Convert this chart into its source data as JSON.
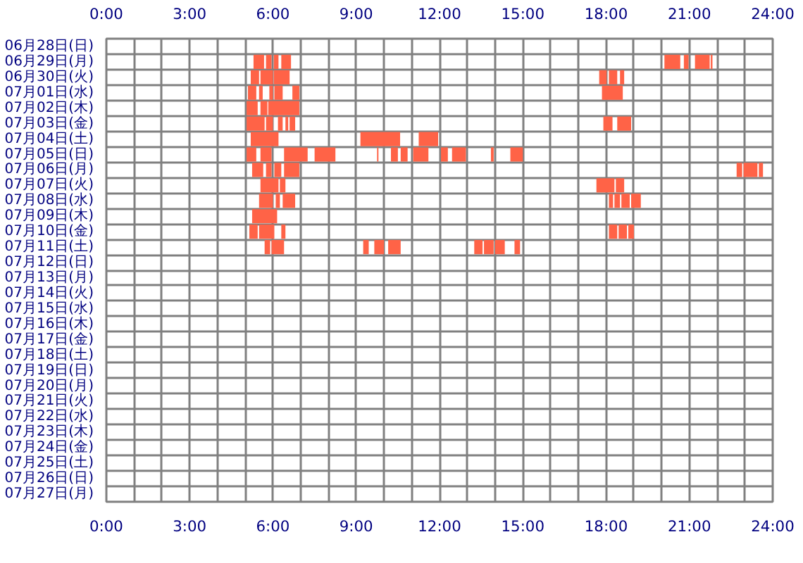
{
  "chart_data": {
    "type": "bar",
    "orientation": "horizontal",
    "grid": true,
    "categories": [
      "06月28日(日)",
      "06月29日(月)",
      "06月30日(火)",
      "07月01日(水)",
      "07月02日(木)",
      "07月03日(金)",
      "07月04日(土)",
      "07月05日(日)",
      "07月06日(月)",
      "07月07日(火)",
      "07月08日(水)",
      "07月09日(木)",
      "07月10日(金)",
      "07月11日(土)",
      "07月12日(日)",
      "07月13日(月)",
      "07月14日(火)",
      "07月15日(水)",
      "07月16日(木)",
      "07月17日(金)",
      "07月18日(土)",
      "07月19日(日)",
      "07月20日(月)",
      "07月21日(火)",
      "07月22日(水)",
      "07月23日(木)",
      "07月24日(金)",
      "07月25日(土)",
      "07月26日(日)",
      "07月27日(月)"
    ],
    "xlim": [
      0,
      24
    ],
    "xticks": [
      {
        "value": 0,
        "label": "0:00"
      },
      {
        "value": 1,
        "label": null
      },
      {
        "value": 2,
        "label": null
      },
      {
        "value": 3,
        "label": "3:00"
      },
      {
        "value": 4,
        "label": null
      },
      {
        "value": 5,
        "label": null
      },
      {
        "value": 6,
        "label": "6:00"
      },
      {
        "value": 7,
        "label": null
      },
      {
        "value": 8,
        "label": null
      },
      {
        "value": 9,
        "label": "9:00"
      },
      {
        "value": 10,
        "label": null
      },
      {
        "value": 11,
        "label": null
      },
      {
        "value": 12,
        "label": "12:00"
      },
      {
        "value": 13,
        "label": null
      },
      {
        "value": 14,
        "label": null
      },
      {
        "value": 15,
        "label": "15:00"
      },
      {
        "value": 16,
        "label": null
      },
      {
        "value": 17,
        "label": null
      },
      {
        "value": 18,
        "label": "18:00"
      },
      {
        "value": 19,
        "label": null
      },
      {
        "value": 20,
        "label": null
      },
      {
        "value": 21,
        "label": "21:00"
      },
      {
        "value": 22,
        "label": null
      },
      {
        "value": 23,
        "label": null
      },
      {
        "value": 24,
        "label": "24:00"
      }
    ],
    "x2lim": [
      0,
      24
    ],
    "x2ticks": [
      {
        "value": 0,
        "label": "0:00"
      },
      {
        "value": 1,
        "label": null
      },
      {
        "value": 2,
        "label": null
      },
      {
        "value": 3,
        "label": "3:00"
      },
      {
        "value": 4,
        "label": null
      },
      {
        "value": 5,
        "label": null
      },
      {
        "value": 6,
        "label": "6:00"
      },
      {
        "value": 7,
        "label": null
      },
      {
        "value": 8,
        "label": null
      },
      {
        "value": 9,
        "label": "9:00"
      },
      {
        "value": 10,
        "label": null
      },
      {
        "value": 11,
        "label": null
      },
      {
        "value": 12,
        "label": "12:00"
      },
      {
        "value": 13,
        "label": null
      },
      {
        "value": 14,
        "label": null
      },
      {
        "value": 15,
        "label": "15:00"
      },
      {
        "value": 16,
        "label": null
      },
      {
        "value": 17,
        "label": null
      },
      {
        "value": 18,
        "label": "18:00"
      },
      {
        "value": 19,
        "label": null
      },
      {
        "value": 20,
        "label": null
      },
      {
        "value": 21,
        "label": "21:00"
      },
      {
        "value": 22,
        "label": null
      },
      {
        "value": 23,
        "label": null
      },
      {
        "value": 24,
        "label": "24:00"
      }
    ],
    "series": [
      {
        "color": "#ff6347",
        "base": [
          null,
          5.3,
          5.2,
          5.1,
          5.05,
          5.05,
          5.2,
          5.05,
          5.25,
          5.55,
          5.5,
          5.25,
          5.15,
          5.7,
          null,
          null,
          null,
          null,
          null,
          null,
          null,
          null,
          null,
          null,
          null,
          null,
          null,
          null,
          null,
          null
        ],
        "values": [
          null,
          0.38,
          0.3,
          0.3,
          0.4,
          0.65,
          1.0,
          0.35,
          0.4,
          0.65,
          0.5,
          0.9,
          0.3,
          0.2,
          null,
          null,
          null,
          null,
          null,
          null,
          null,
          null,
          null,
          null,
          null,
          null,
          null,
          null,
          null,
          null
        ]
      },
      {
        "color": "#ff6347",
        "base": [
          null,
          5.75,
          5.55,
          5.5,
          5.55,
          5.75,
          9.15,
          5.55,
          5.75,
          6.25,
          6.1,
          null,
          5.5,
          5.95,
          null,
          null,
          null,
          null,
          null,
          null,
          null,
          null,
          null,
          null,
          null,
          null,
          null,
          null,
          null,
          null
        ],
        "values": [
          null,
          0.2,
          0.45,
          0.13,
          0.25,
          0.25,
          1.43,
          0.4,
          0.2,
          0.2,
          0.15,
          null,
          0.55,
          0.45,
          null,
          null,
          null,
          null,
          null,
          null,
          null,
          null,
          null,
          null,
          null,
          null,
          null,
          null,
          null,
          null
        ]
      },
      {
        "color": "#ff6347",
        "base": [
          null,
          6.03,
          6.03,
          5.87,
          5.83,
          6.18,
          11.25,
          6.4,
          6.05,
          17.65,
          6.35,
          null,
          6.3,
          9.25,
          null,
          null,
          null,
          null,
          null,
          null,
          null,
          null,
          null,
          null,
          null,
          null,
          null,
          null,
          null,
          null
        ],
        "values": [
          null,
          0.17,
          0.57,
          0.13,
          1.12,
          0.17,
          0.7,
          0.85,
          0.25,
          0.65,
          0.45,
          null,
          0.15,
          0.2,
          null,
          null,
          null,
          null,
          null,
          null,
          null,
          null,
          null,
          null,
          null,
          null,
          null,
          null,
          null,
          null
        ]
      },
      {
        "color": "#ff6347",
        "base": [
          null,
          6.3,
          17.75,
          6.05,
          null,
          6.45,
          null,
          7.5,
          6.4,
          18.35,
          18.1,
          null,
          18.1,
          9.65,
          null,
          null,
          null,
          null,
          null,
          null,
          null,
          null,
          null,
          null,
          null,
          null,
          null,
          null,
          null,
          null
        ],
        "values": [
          null,
          0.35,
          0.27,
          0.3,
          null,
          0.1,
          null,
          0.75,
          0.55,
          0.3,
          0.15,
          null,
          0.3,
          0.35,
          null,
          null,
          null,
          null,
          null,
          null,
          null,
          null,
          null,
          null,
          null,
          null,
          null,
          null,
          null,
          null
        ]
      },
      {
        "color": "#ff6347",
        "base": [
          null,
          20.1,
          18.1,
          6.7,
          null,
          6.6,
          null,
          9.75,
          22.7,
          null,
          18.3,
          null,
          18.45,
          10.15,
          null,
          null,
          null,
          null,
          null,
          null,
          null,
          null,
          null,
          null,
          null,
          null,
          null,
          null,
          null,
          null
        ],
        "values": [
          null,
          0.57,
          0.3,
          0.25,
          null,
          0.2,
          null,
          0.05,
          0.2,
          null,
          0.2,
          null,
          0.3,
          0.45,
          null,
          null,
          null,
          null,
          null,
          null,
          null,
          null,
          null,
          null,
          null,
          null,
          null,
          null,
          null,
          null
        ]
      },
      {
        "color": "#ff6347",
        "base": [
          null,
          20.8,
          18.5,
          17.85,
          null,
          17.9,
          null,
          10.25,
          22.95,
          null,
          18.55,
          null,
          18.8,
          13.25,
          null,
          null,
          null,
          null,
          null,
          null,
          null,
          null,
          null,
          null,
          null,
          null,
          null,
          null,
          null,
          null
        ],
        "values": [
          null,
          0.17,
          0.15,
          0.75,
          null,
          0.33,
          null,
          0.25,
          0.5,
          null,
          0.3,
          null,
          0.2,
          0.3,
          null,
          null,
          null,
          null,
          null,
          null,
          null,
          null,
          null,
          null,
          null,
          null,
          null,
          null,
          null,
          null
        ]
      },
      {
        "color": "#ff6347",
        "base": [
          null,
          21.2,
          null,
          null,
          null,
          18.4,
          null,
          10.6,
          23.5,
          null,
          18.9,
          null,
          null,
          13.6,
          null,
          null,
          null,
          null,
          null,
          null,
          null,
          null,
          null,
          null,
          null,
          null,
          null,
          null,
          null,
          null
        ],
        "values": [
          null,
          0.53,
          null,
          null,
          null,
          0.5,
          null,
          0.25,
          0.15,
          null,
          0.35,
          null,
          null,
          0.35,
          null,
          null,
          null,
          null,
          null,
          null,
          null,
          null,
          null,
          null,
          null,
          null,
          null,
          null,
          null,
          null
        ]
      },
      {
        "color": "#ff6347",
        "base": [
          null,
          21.77,
          null,
          null,
          null,
          null,
          null,
          11.05,
          null,
          null,
          null,
          null,
          null,
          14.0,
          null,
          null,
          null,
          null,
          null,
          null,
          null,
          null,
          null,
          null,
          null,
          null,
          null,
          null,
          null,
          null
        ],
        "values": [
          null,
          0.06,
          null,
          null,
          null,
          null,
          null,
          0.55,
          null,
          null,
          null,
          null,
          null,
          0.35,
          null,
          null,
          null,
          null,
          null,
          null,
          null,
          null,
          null,
          null,
          null,
          null,
          null,
          null,
          null,
          null
        ]
      },
      {
        "color": "#ff6347",
        "base": [
          null,
          null,
          null,
          null,
          null,
          null,
          null,
          12.05,
          null,
          null,
          null,
          null,
          null,
          14.7,
          null,
          null,
          null,
          null,
          null,
          null,
          null,
          null,
          null,
          null,
          null,
          null,
          null,
          null,
          null,
          null
        ],
        "values": [
          null,
          null,
          null,
          null,
          null,
          null,
          null,
          0.25,
          null,
          null,
          null,
          null,
          null,
          0.2,
          null,
          null,
          null,
          null,
          null,
          null,
          null,
          null,
          null,
          null,
          null,
          null,
          null,
          null,
          null,
          null
        ]
      },
      {
        "color": "#ff6347",
        "base": [
          null,
          null,
          null,
          null,
          null,
          null,
          null,
          12.45,
          null,
          null,
          null,
          null,
          null,
          null,
          null,
          null,
          null,
          null,
          null,
          null,
          null,
          null,
          null,
          null,
          null,
          null,
          null,
          null,
          null,
          null
        ],
        "values": [
          null,
          null,
          null,
          null,
          null,
          null,
          null,
          0.5,
          null,
          null,
          null,
          null,
          null,
          null,
          null,
          null,
          null,
          null,
          null,
          null,
          null,
          null,
          null,
          null,
          null,
          null,
          null,
          null,
          null,
          null
        ]
      },
      {
        "color": "#ff6347",
        "base": [
          null,
          null,
          null,
          null,
          null,
          null,
          null,
          13.85,
          null,
          null,
          null,
          null,
          null,
          null,
          null,
          null,
          null,
          null,
          null,
          null,
          null,
          null,
          null,
          null,
          null,
          null,
          null,
          null,
          null,
          null
        ],
        "values": [
          null,
          null,
          null,
          null,
          null,
          null,
          null,
          0.1,
          null,
          null,
          null,
          null,
          null,
          null,
          null,
          null,
          null,
          null,
          null,
          null,
          null,
          null,
          null,
          null,
          null,
          null,
          null,
          null,
          null,
          null
        ]
      },
      {
        "color": "#ff6347",
        "base": [
          null,
          null,
          null,
          null,
          null,
          null,
          null,
          14.55,
          null,
          null,
          null,
          null,
          null,
          null,
          null,
          null,
          null,
          null,
          null,
          null,
          null,
          null,
          null,
          null,
          null,
          null,
          null,
          null,
          null,
          null
        ],
        "values": [
          null,
          null,
          null,
          null,
          null,
          null,
          null,
          0.45,
          null,
          null,
          null,
          null,
          null,
          null,
          null,
          null,
          null,
          null,
          null,
          null,
          null,
          null,
          null,
          null,
          null,
          null,
          null,
          null,
          null,
          null
        ]
      }
    ]
  }
}
